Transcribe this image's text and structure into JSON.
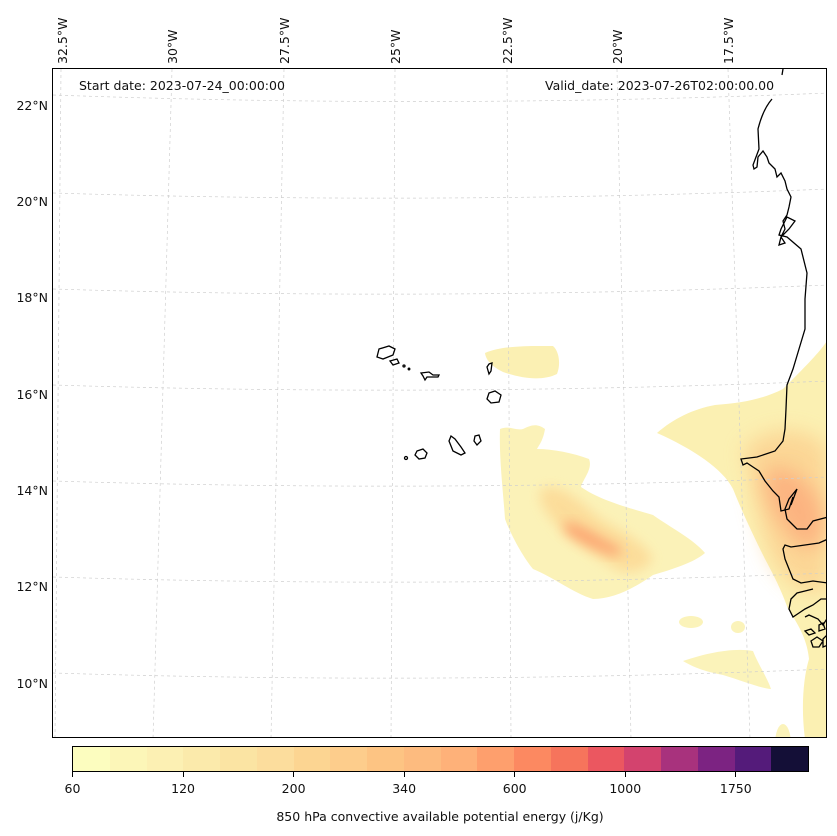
{
  "map": {
    "start_date_label": "Start date: 2023-07-24_00:00:00",
    "valid_date_label": "Valid_date: 2023-07-26T02:00:00.00",
    "longitude_labels": [
      "32.5°W",
      "30°W",
      "27.5°W",
      "25°W",
      "22.5°W",
      "20°W",
      "17.5°W"
    ],
    "latitude_labels": [
      "22°N",
      "20°N",
      "18°N",
      "16°N",
      "14°N",
      "12°N",
      "10°N"
    ],
    "extent": {
      "lon_min": -32.6,
      "lon_max": -15.6,
      "lat_min": 8.9,
      "lat_max": 22.8
    },
    "features": [
      "coastline",
      "cape-verde-islands",
      "gridlines",
      "cape-contour-field"
    ]
  },
  "colorbar": {
    "title": "850 hPa convective available potential energy (j/Kg)",
    "tick_labels": [
      "60",
      "120",
      "200",
      "340",
      "600",
      "1000",
      "1750"
    ],
    "tick_segment_index": [
      0,
      3,
      6,
      9,
      12,
      15,
      18
    ],
    "colors": [
      "#fcfdbf",
      "#fcf6b8",
      "#fcf0b3",
      "#fbeaab",
      "#fbe4a3",
      "#fcdd9d",
      "#fcd592",
      "#fdcd8c",
      "#fdc483",
      "#fdbb7f",
      "#feb179",
      "#fe9f6d",
      "#fc8961",
      "#f6745c",
      "#eb5760",
      "#d3436e",
      "#a8327d",
      "#7c2382",
      "#541b7a",
      "#140f37"
    ],
    "levels": [
      60,
      80,
      100,
      120,
      140,
      160,
      200,
      240,
      280,
      340,
      400,
      500,
      600,
      700,
      800,
      1000,
      1250,
      1500,
      1750,
      2000
    ]
  }
}
